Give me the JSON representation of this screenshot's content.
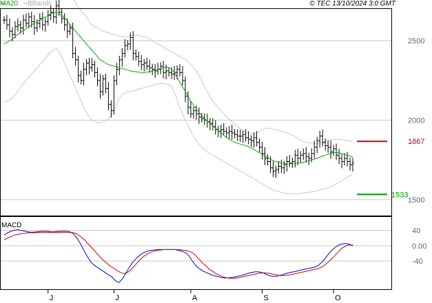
{
  "header": {
    "legend_ma": "MA20",
    "legend_bb": "BBands",
    "copyright": "© TEC 13/10/2024 3:0 GMT"
  },
  "colors": {
    "price": "#000000",
    "ma": "#00aa00",
    "bands": "#c8c8c8",
    "resistance": "#cc0000",
    "support": "#009900",
    "macd": "#0000cc",
    "signal": "#cc0000",
    "grid": "#c8c8c8",
    "frame": "#000000",
    "axis_text": "#666666"
  },
  "chart_data": [
    {
      "type": "candlestick",
      "ylim": [
        1400,
        2700
      ],
      "price_ticks": [
        1500,
        2000,
        2500
      ],
      "price_tick_labels": [
        "1500",
        "2000",
        "2500"
      ],
      "month_labels": [
        "J",
        "J",
        "A",
        "S",
        "O"
      ],
      "month_positions": [
        16,
        40,
        68,
        94,
        120
      ],
      "n_periods": 128,
      "levels": [
        {
          "value": 1867,
          "label": "1867",
          "kind": "resistance"
        },
        {
          "value": 1533,
          "label": "1533",
          "kind": "support"
        }
      ],
      "close": [
        2630,
        2600,
        2560,
        2540,
        2590,
        2600,
        2580,
        2630,
        2610,
        2650,
        2620,
        2580,
        2610,
        2640,
        2600,
        2620,
        2660,
        2680,
        2650,
        2720,
        2680,
        2640,
        2600,
        2560,
        2580,
        2420,
        2380,
        2280,
        2250,
        2320,
        2360,
        2330,
        2350,
        2300,
        2250,
        2180,
        2260,
        2200,
        2100,
        2060,
        2250,
        2320,
        2380,
        2420,
        2470,
        2480,
        2520,
        2420,
        2400,
        2370,
        2350,
        2360,
        2340,
        2330,
        2320,
        2310,
        2320,
        2340,
        2300,
        2310,
        2300,
        2290,
        2300,
        2320,
        2300,
        2250,
        2150,
        2080,
        2040,
        2060,
        2040,
        2020,
        2010,
        2000,
        1990,
        1980,
        1960,
        1940,
        1930,
        1940,
        1930,
        1920,
        1930,
        1920,
        1910,
        1900,
        1900,
        1910,
        1890,
        1880,
        1870,
        1890,
        1860,
        1830,
        1790,
        1760,
        1740,
        1700,
        1680,
        1690,
        1710,
        1700,
        1720,
        1740,
        1730,
        1740,
        1780,
        1760,
        1780,
        1790,
        1770,
        1760,
        1790,
        1830,
        1870,
        1900,
        1860,
        1840,
        1830,
        1800,
        1820,
        1780,
        1760,
        1740,
        1760,
        1740,
        1720,
        1730
      ],
      "ma20": [
        2480,
        2490,
        2500,
        2510,
        2525,
        2540,
        2555,
        2565,
        2575,
        2590,
        2600,
        2610,
        2620,
        2630,
        2640,
        2650,
        2660,
        2670,
        2675,
        2680,
        2670,
        2660,
        2645,
        2625,
        2600,
        2580,
        2560,
        2540,
        2520,
        2500,
        2480,
        2460,
        2440,
        2420,
        2400,
        2380,
        2370,
        2360,
        2350,
        2345,
        2340,
        2335,
        2330,
        2325,
        2320,
        2315,
        2310,
        2308,
        2305,
        2303,
        2300,
        2300,
        2302,
        2305,
        2310,
        2315,
        2320,
        2325,
        2330,
        2335,
        2330,
        2320,
        2300,
        2270,
        2240,
        2210,
        2180,
        2150,
        2120,
        2095,
        2070,
        2050,
        2030,
        2010,
        1995,
        1980,
        1965,
        1950,
        1935,
        1920,
        1905,
        1890,
        1880,
        1870,
        1860,
        1855,
        1850,
        1845,
        1840,
        1835,
        1825,
        1815,
        1805,
        1795,
        1785,
        1775,
        1765,
        1755,
        1745,
        1740,
        1735,
        1730,
        1728,
        1726,
        1725,
        1726,
        1728,
        1730,
        1733,
        1736,
        1740,
        1745,
        1750,
        1755,
        1760,
        1768,
        1775,
        1780,
        1785,
        1790,
        1795,
        1797,
        1795,
        1790,
        1785,
        1780,
        1775,
        1770
      ],
      "bb_upper": [
        2850,
        2860,
        2870,
        2880,
        2890,
        2900,
        2905,
        2910,
        2915,
        2920,
        2925,
        2930,
        2935,
        2940,
        2945,
        2950,
        2955,
        2960,
        2965,
        2970,
        2950,
        2920,
        2880,
        2840,
        2800,
        2770,
        2740,
        2710,
        2690,
        2670,
        2650,
        2620,
        2600,
        2590,
        2580,
        2570,
        2560,
        2555,
        2550,
        2545,
        2540,
        2535,
        2530,
        2525,
        2525,
        2525,
        2530,
        2535,
        2535,
        2535,
        2530,
        2525,
        2520,
        2510,
        2500,
        2490,
        2480,
        2470,
        2460,
        2450,
        2440,
        2430,
        2420,
        2410,
        2400,
        2390,
        2380,
        2370,
        2350,
        2330,
        2310,
        2280,
        2250,
        2210,
        2180,
        2150,
        2120,
        2100,
        2080,
        2060,
        2040,
        2020,
        2005,
        1990,
        1975,
        1960,
        1945,
        1935,
        1925,
        1920,
        1915,
        1915,
        1920,
        1930,
        1940,
        1945,
        1950,
        1950,
        1945,
        1940,
        1935,
        1930,
        1925,
        1920,
        1915,
        1905,
        1895,
        1885,
        1875,
        1865,
        1860,
        1858,
        1856,
        1855,
        1855,
        1858,
        1862,
        1868,
        1872,
        1876,
        1878,
        1880,
        1880,
        1878,
        1875,
        1872,
        1870,
        1868
      ],
      "bb_lower": [
        2110,
        2120,
        2130,
        2140,
        2160,
        2180,
        2210,
        2230,
        2250,
        2270,
        2290,
        2310,
        2330,
        2350,
        2370,
        2390,
        2410,
        2430,
        2440,
        2450,
        2430,
        2400,
        2360,
        2320,
        2280,
        2240,
        2200,
        2160,
        2120,
        2080,
        2050,
        2020,
        2000,
        1990,
        1985,
        1985,
        1990,
        2000,
        2010,
        2030,
        2060,
        2100,
        2140,
        2160,
        2170,
        2180,
        2180,
        2185,
        2190,
        2195,
        2200,
        2205,
        2210,
        2215,
        2220,
        2225,
        2228,
        2230,
        2230,
        2228,
        2225,
        2210,
        2180,
        2130,
        2080,
        2040,
        2000,
        1970,
        1930,
        1900,
        1870,
        1850,
        1830,
        1815,
        1800,
        1790,
        1780,
        1770,
        1760,
        1750,
        1740,
        1730,
        1720,
        1710,
        1700,
        1690,
        1680,
        1670,
        1660,
        1650,
        1640,
        1630,
        1620,
        1610,
        1600,
        1590,
        1580,
        1570,
        1560,
        1555,
        1550,
        1545,
        1542,
        1540,
        1538,
        1537,
        1537,
        1538,
        1540,
        1542,
        1544,
        1546,
        1548,
        1550,
        1555,
        1560,
        1565,
        1570,
        1575,
        1580,
        1590,
        1600,
        1610,
        1620,
        1630,
        1640,
        1650,
        1660
      ]
    },
    {
      "type": "line",
      "title": "MACD",
      "ylim": [
        -110,
        70
      ],
      "yticks": [
        40,
        0,
        -40
      ],
      "ytick_labels": [
        "40",
        "0.00",
        "-40"
      ],
      "series": [
        {
          "name": "MACD",
          "values": [
            28,
            34,
            38,
            41,
            42,
            40,
            38,
            36,
            35,
            36,
            37,
            38,
            38,
            37,
            36,
            37,
            38,
            38,
            38,
            36,
            30,
            18,
            4,
            -14,
            -30,
            -44,
            -52,
            -58,
            -64,
            -70,
            -76,
            -82,
            -92,
            -96,
            -86,
            -70,
            -55,
            -42,
            -32,
            -24,
            -18,
            -14,
            -12,
            -11,
            -10,
            -10,
            -10,
            -10,
            -10,
            -10,
            -12,
            -14,
            -18,
            -26,
            -40,
            -52,
            -60,
            -66,
            -70,
            -74,
            -78,
            -80,
            -82,
            -84,
            -84,
            -83,
            -82,
            -80,
            -78,
            -75,
            -72,
            -70,
            -68,
            -68,
            -70,
            -74,
            -78,
            -80,
            -80,
            -78,
            -75,
            -72,
            -70,
            -68,
            -66,
            -64,
            -62,
            -60,
            -58,
            -56,
            -52,
            -44,
            -34,
            -22,
            -12,
            -4,
            2,
            5,
            6,
            4,
            0
          ]
        },
        {
          "name": "Signal",
          "values": [
            16,
            20,
            24,
            28,
            30,
            32,
            33,
            34,
            34,
            34,
            35,
            35,
            35,
            35,
            35,
            35,
            35,
            35,
            35,
            35,
            34,
            30,
            24,
            16,
            6,
            -4,
            -14,
            -24,
            -34,
            -42,
            -50,
            -56,
            -62,
            -68,
            -72,
            -72,
            -66,
            -56,
            -46,
            -36,
            -28,
            -22,
            -17,
            -14,
            -12,
            -11,
            -10,
            -10,
            -10,
            -10,
            -10,
            -11,
            -12,
            -14,
            -18,
            -26,
            -36,
            -46,
            -54,
            -62,
            -68,
            -74,
            -78,
            -82,
            -84,
            -85,
            -85,
            -84,
            -82,
            -80,
            -78,
            -76,
            -74,
            -72,
            -71,
            -71,
            -72,
            -74,
            -76,
            -78,
            -78,
            -77,
            -76,
            -74,
            -72,
            -70,
            -68,
            -66,
            -64,
            -62,
            -60,
            -56,
            -50,
            -42,
            -34,
            -24,
            -14,
            -6,
            0,
            2,
            2
          ]
        }
      ]
    }
  ]
}
